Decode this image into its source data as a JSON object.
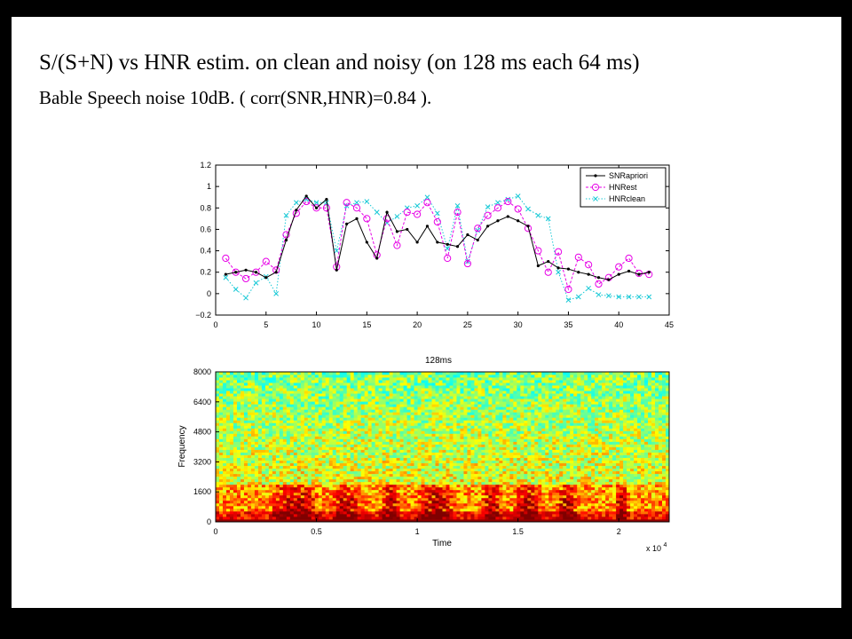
{
  "slide": {
    "title": "S/(S+N) vs HNR estim. on clean and noisy (on 128 ms each 64 ms)",
    "subtitle": "Bable Speech noise 10dB. ( corr(SNR,HNR)=0.84 )."
  },
  "chart_data": [
    {
      "type": "line",
      "title": "",
      "xlabel": "",
      "ylabel": "",
      "xlim": [
        0,
        45
      ],
      "ylim": [
        -0.2,
        1.2
      ],
      "xticks": [
        0,
        5,
        10,
        15,
        20,
        25,
        30,
        35,
        40,
        45
      ],
      "yticks": [
        -0.2,
        0,
        0.2,
        0.4,
        0.6,
        0.8,
        1,
        1.2
      ],
      "ytick_labels": [
        "−0.2",
        "0",
        "0.2",
        "0.4",
        "0.6",
        "0.8",
        "1",
        "1.2"
      ],
      "grid": false,
      "legend_position": "top-right",
      "x": [
        1,
        2,
        3,
        4,
        5,
        6,
        7,
        8,
        9,
        10,
        11,
        12,
        13,
        14,
        15,
        16,
        17,
        18,
        19,
        20,
        21,
        22,
        23,
        24,
        25,
        26,
        27,
        28,
        29,
        30,
        31,
        32,
        33,
        34,
        35,
        36,
        37,
        38,
        39,
        40,
        41,
        42,
        43
      ],
      "series": [
        {
          "name": "SNRapriori",
          "color": "#000000",
          "style": "solid",
          "marker": "dot",
          "values": [
            0.18,
            0.2,
            0.22,
            0.2,
            0.15,
            0.2,
            0.5,
            0.78,
            0.91,
            0.8,
            0.88,
            0.22,
            0.65,
            0.7,
            0.48,
            0.33,
            0.76,
            0.58,
            0.6,
            0.48,
            0.63,
            0.48,
            0.46,
            0.44,
            0.55,
            0.5,
            0.63,
            0.68,
            0.72,
            0.68,
            0.63,
            0.26,
            0.3,
            0.24,
            0.23,
            0.2,
            0.18,
            0.15,
            0.13,
            0.18,
            0.21,
            0.18,
            0.2
          ]
        },
        {
          "name": "HNRest",
          "color": "#e600e6",
          "style": "dashed",
          "marker": "circle",
          "values": [
            0.33,
            0.2,
            0.14,
            0.2,
            0.3,
            0.22,
            0.55,
            0.75,
            0.86,
            0.8,
            0.8,
            0.25,
            0.85,
            0.8,
            0.7,
            0.36,
            0.7,
            0.45,
            0.76,
            0.74,
            0.85,
            0.67,
            0.33,
            0.76,
            0.28,
            0.61,
            0.73,
            0.8,
            0.86,
            0.79,
            0.61,
            0.4,
            0.2,
            0.39,
            0.04,
            0.34,
            0.27,
            0.09,
            0.15,
            0.25,
            0.33,
            0.19,
            0.18
          ]
        },
        {
          "name": "HNRclean",
          "color": "#17c9d6",
          "style": "dotted",
          "marker": "x",
          "values": [
            0.15,
            0.04,
            -0.04,
            0.1,
            0.16,
            0.0,
            0.73,
            0.85,
            0.88,
            0.85,
            0.85,
            0.4,
            0.82,
            0.85,
            0.86,
            0.76,
            0.66,
            0.72,
            0.8,
            0.82,
            0.9,
            0.75,
            0.42,
            0.82,
            0.3,
            0.59,
            0.81,
            0.85,
            0.88,
            0.91,
            0.79,
            0.73,
            0.7,
            0.2,
            -0.06,
            -0.03,
            0.05,
            -0.01,
            -0.02,
            -0.03,
            -0.03,
            -0.03,
            -0.03
          ]
        }
      ]
    },
    {
      "type": "heatmap",
      "title": "128ms",
      "xlabel": "Time",
      "ylabel": "Frequency",
      "xlim": [
        0,
        2.25
      ],
      "ylim": [
        0,
        8000
      ],
      "xticks": [
        0,
        0.5,
        1,
        1.5,
        2
      ],
      "xtick_labels": [
        "0",
        "0.5",
        "1",
        "1.5",
        "2"
      ],
      "yticks": [
        0,
        1600,
        3200,
        4800,
        6400,
        8000
      ],
      "x_multiplier_label": "x 10",
      "x_multiplier_exponent": "4",
      "colormap": "jet",
      "colors": [
        "#00008f",
        "#0000ff",
        "#00ffff",
        "#ffff00",
        "#ff0000",
        "#800000"
      ]
    }
  ]
}
